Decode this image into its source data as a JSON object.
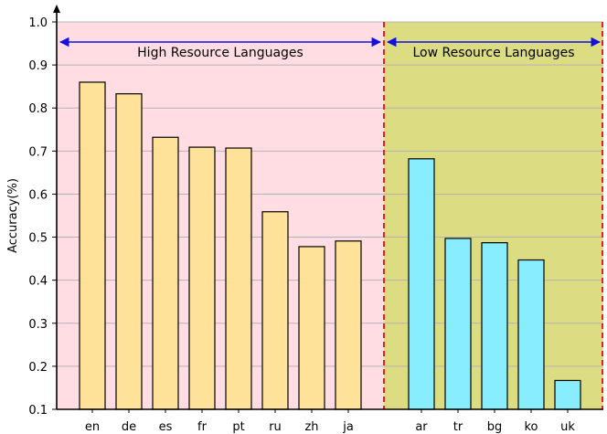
{
  "chart_data": {
    "type": "bar",
    "ylabel": "Accuracy(%)",
    "ylim": [
      0.1,
      1.0
    ],
    "yticks": [
      "0.1",
      "0.2",
      "0.3",
      "0.4",
      "0.5",
      "0.6",
      "0.7",
      "0.8",
      "0.9",
      "1.0"
    ],
    "grid": "horizontal",
    "groups": [
      {
        "label": "High Resource Languages",
        "background": "#ffdde3",
        "bar_color": "#ffe299",
        "categories": [
          "en",
          "de",
          "es",
          "fr",
          "pt",
          "ru",
          "zh",
          "ja"
        ],
        "values": [
          0.86,
          0.833,
          0.732,
          0.709,
          0.707,
          0.559,
          0.478,
          0.491
        ]
      },
      {
        "label": "Low Resource Languages",
        "background": "#dcdc82",
        "bar_color": "#88eeff",
        "categories": [
          "ar",
          "tr",
          "bg",
          "ko",
          "uk"
        ],
        "values": [
          0.682,
          0.497,
          0.487,
          0.447,
          0.167
        ]
      }
    ],
    "colors": {
      "divider": "#e52222",
      "arrow": "#1010e0",
      "grid": "#b4b4b4"
    }
  }
}
